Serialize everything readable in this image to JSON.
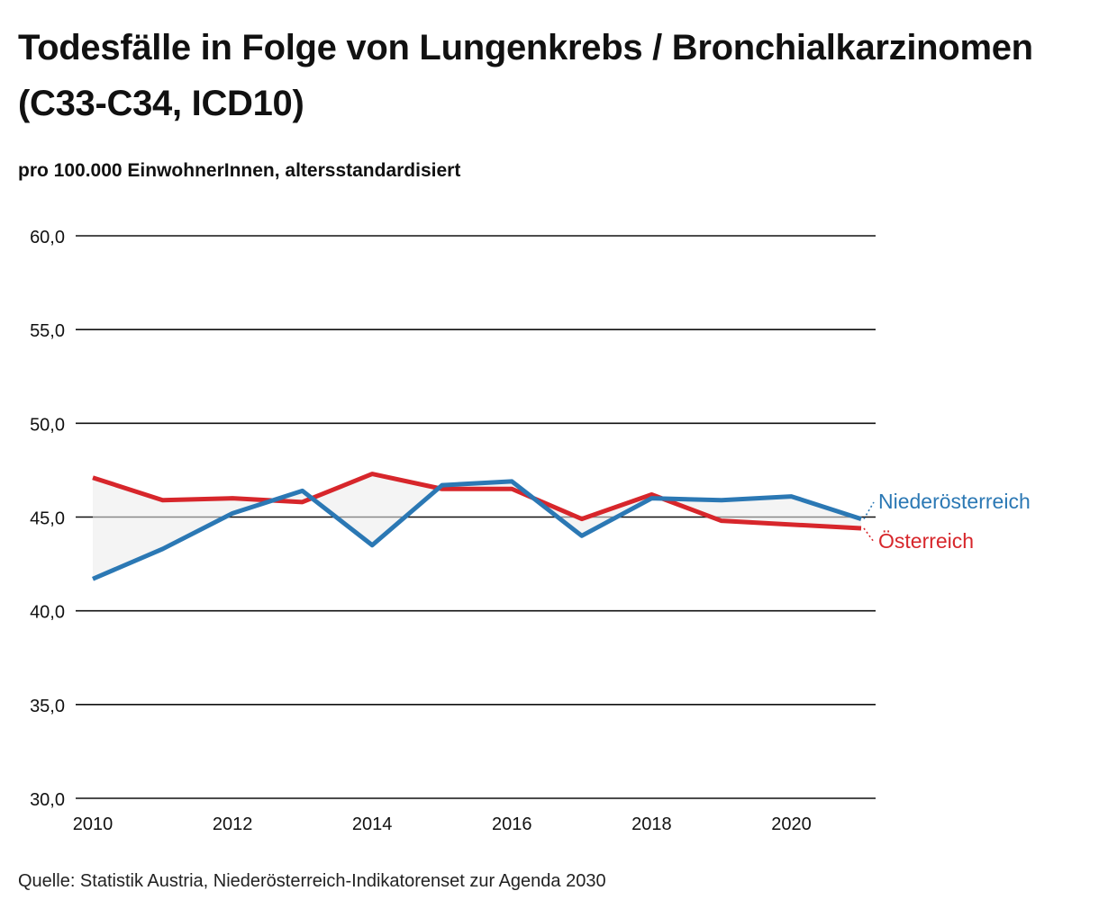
{
  "title": "Todesfälle in Folge von Lungenkrebs / Bronchialkarzinomen (C33-C34, ICD10)",
  "subtitle": "pro 100.000 EinwohnerInnen, altersstandardisiert",
  "source": "Quelle: Statistik Austria, Niederösterreich-Indikatorenset zur Agenda 2030",
  "chart_data": {
    "type": "line",
    "x": [
      2010,
      2011,
      2012,
      2013,
      2014,
      2015,
      2016,
      2017,
      2018,
      2019,
      2020,
      2021
    ],
    "series": [
      {
        "name": "Niederösterreich",
        "color": "#2b78b4",
        "values": [
          41.7,
          43.3,
          45.2,
          46.4,
          43.5,
          46.7,
          46.9,
          44.0,
          46.0,
          45.9,
          46.1,
          44.9
        ]
      },
      {
        "name": "Österreich",
        "color": "#d7262b",
        "values": [
          47.1,
          45.9,
          46.0,
          45.8,
          47.3,
          46.5,
          46.5,
          44.9,
          46.2,
          44.8,
          44.6,
          44.4
        ]
      }
    ],
    "ylim": [
      30,
      60
    ],
    "yticks": [
      "30,0",
      "35,0",
      "40,0",
      "45,0",
      "50,0",
      "55,0",
      "60,0"
    ],
    "xticks": [
      "2010",
      "2012",
      "2014",
      "2016",
      "2018",
      "2020"
    ],
    "fill_between": true,
    "grid": "horizontal",
    "legend": "direct labels at right end of lines"
  }
}
